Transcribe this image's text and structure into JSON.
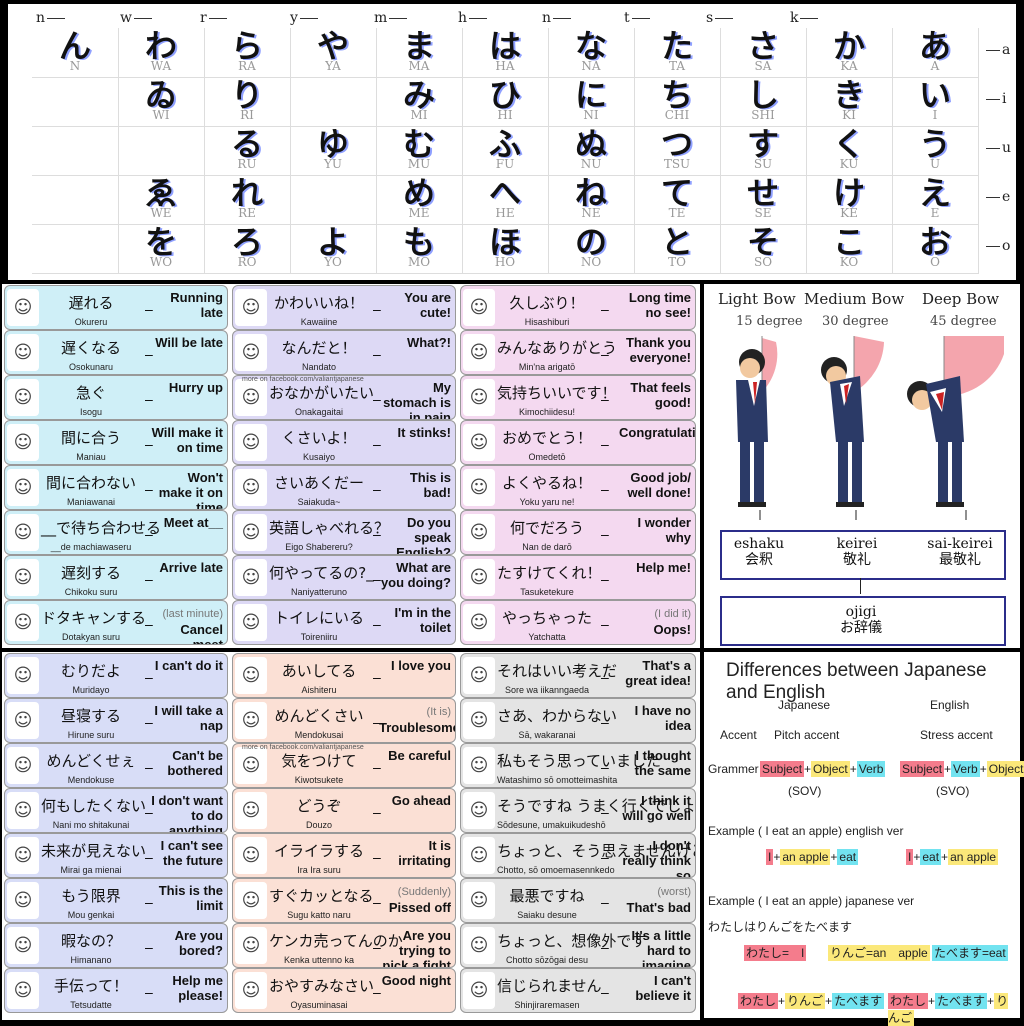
{
  "kana_chart": {
    "consonant_headers": [
      "n",
      "w",
      "r",
      "y",
      "m",
      "h",
      "n",
      "t",
      "s",
      "k"
    ],
    "vowel_labels": [
      "a",
      "i",
      "u",
      "e",
      "o"
    ],
    "columns": [
      {
        "cells": [
          {
            "kana": "ん",
            "romaji": "N"
          },
          null,
          null,
          null,
          null
        ]
      },
      {
        "cells": [
          {
            "kana": "わ",
            "romaji": "WA"
          },
          {
            "kana": "ゐ",
            "romaji": "WI"
          },
          null,
          {
            "kana": "ゑ",
            "romaji": "WE"
          },
          {
            "kana": "を",
            "romaji": "WO"
          }
        ]
      },
      {
        "cells": [
          {
            "kana": "ら",
            "romaji": "RA"
          },
          {
            "kana": "り",
            "romaji": "RI"
          },
          {
            "kana": "る",
            "romaji": "RU"
          },
          {
            "kana": "れ",
            "romaji": "RE"
          },
          {
            "kana": "ろ",
            "romaji": "RO"
          }
        ]
      },
      {
        "cells": [
          {
            "kana": "や",
            "romaji": "YA"
          },
          null,
          {
            "kana": "ゆ",
            "romaji": "YU"
          },
          null,
          {
            "kana": "よ",
            "romaji": "YO"
          }
        ]
      },
      {
        "cells": [
          {
            "kana": "ま",
            "romaji": "MA"
          },
          {
            "kana": "み",
            "romaji": "MI"
          },
          {
            "kana": "む",
            "romaji": "MU"
          },
          {
            "kana": "め",
            "romaji": "ME"
          },
          {
            "kana": "も",
            "romaji": "MO"
          }
        ]
      },
      {
        "cells": [
          {
            "kana": "は",
            "romaji": "HA"
          },
          {
            "kana": "ひ",
            "romaji": "HI"
          },
          {
            "kana": "ふ",
            "romaji": "FU"
          },
          {
            "kana": "へ",
            "romaji": "HE"
          },
          {
            "kana": "ほ",
            "romaji": "HO"
          }
        ]
      },
      {
        "cells": [
          {
            "kana": "な",
            "romaji": "NA"
          },
          {
            "kana": "に",
            "romaji": "NI"
          },
          {
            "kana": "ぬ",
            "romaji": "NU"
          },
          {
            "kana": "ね",
            "romaji": "NE"
          },
          {
            "kana": "の",
            "romaji": "NO"
          }
        ]
      },
      {
        "cells": [
          {
            "kana": "た",
            "romaji": "TA"
          },
          {
            "kana": "ち",
            "romaji": "CHI"
          },
          {
            "kana": "つ",
            "romaji": "TSU"
          },
          {
            "kana": "て",
            "romaji": "TE"
          },
          {
            "kana": "と",
            "romaji": "TO"
          }
        ]
      },
      {
        "cells": [
          {
            "kana": "さ",
            "romaji": "SA"
          },
          {
            "kana": "し",
            "romaji": "SHI"
          },
          {
            "kana": "す",
            "romaji": "SU"
          },
          {
            "kana": "せ",
            "romaji": "SE"
          },
          {
            "kana": "そ",
            "romaji": "SO"
          }
        ]
      },
      {
        "cells": [
          {
            "kana": "か",
            "romaji": "KA"
          },
          {
            "kana": "き",
            "romaji": "KI"
          },
          {
            "kana": "く",
            "romaji": "KU"
          },
          {
            "kana": "け",
            "romaji": "KE"
          },
          {
            "kana": "こ",
            "romaji": "KO"
          }
        ]
      },
      {
        "cells": [
          {
            "kana": "あ",
            "romaji": "A"
          },
          {
            "kana": "い",
            "romaji": "I"
          },
          {
            "kana": "う",
            "romaji": "U"
          },
          {
            "kana": "え",
            "romaji": "E"
          },
          {
            "kana": "お",
            "romaji": "O"
          }
        ]
      }
    ]
  },
  "panel1": {
    "columns": [
      {
        "color": "#cfeff7",
        "rows": [
          {
            "jp": "遅れる",
            "romaji": "Okureru",
            "en": "Running late"
          },
          {
            "jp": "遅くなる",
            "romaji": "Osokunaru",
            "en": "Will be late"
          },
          {
            "jp": "急ぐ",
            "romaji": "Isogu",
            "en": "Hurry up"
          },
          {
            "jp": "間に合う",
            "romaji": "Maniau",
            "en": "Will make it on time"
          },
          {
            "jp": "間に合わない",
            "romaji": "Maniawanai",
            "en": "Won't make it on time"
          },
          {
            "jp": "__で待ち合わせる",
            "romaji": "__de machiawaseru",
            "en": "Meet at__"
          },
          {
            "jp": "遅刻する",
            "romaji": "Chikoku suru",
            "en": "Arrive late"
          },
          {
            "jp": "ドタキャンする",
            "romaji": "Dotakyan suru",
            "en": "Cancel meet",
            "en_note": "(last minute)"
          }
        ]
      },
      {
        "color": "#ddd9f5",
        "rows": [
          {
            "jp": "かわいいね！",
            "romaji": "Kawaiine",
            "en": "You are cute!"
          },
          {
            "jp": "なんだと！",
            "romaji": "Nandato",
            "en": "What?!"
          },
          {
            "jp": "おなかがいたい",
            "romaji": "Onakagaitai",
            "en": "My stomach is in pain"
          },
          {
            "jp": "くさいよ！",
            "romaji": "Kusaiyo",
            "en": "It stinks!"
          },
          {
            "jp": "さいあくだー",
            "romaji": "Saiakuda~",
            "en": "This is bad!"
          },
          {
            "jp": "英語しゃべれる？",
            "romaji": "Eigo Shabereru?",
            "en": "Do you speak English?"
          },
          {
            "jp": "何やってるの?_",
            "romaji": "Naniyatteruno",
            "en": "What are you doing?"
          },
          {
            "jp": "トイレにいる",
            "romaji": "Toireniiru",
            "en": "I'm in the toilet"
          }
        ]
      },
      {
        "color": "#f4d9f0",
        "rows": [
          {
            "jp": "久しぶり！",
            "romaji": "Hisashiburi",
            "en": "Long time no see!"
          },
          {
            "jp": "みんなありがとう",
            "romaji": "Min'na arigatō",
            "en": "Thank you everyone!"
          },
          {
            "jp": "気持ちいいです！",
            "romaji": "Kimochiidesu!",
            "en": "That feels good!"
          },
          {
            "jp": "おめでとう！",
            "romaji": "Omedetō",
            "en": "Congratulations"
          },
          {
            "jp": "よくやるね！",
            "romaji": "Yoku yaru ne!",
            "en": "Good job/ well done!"
          },
          {
            "jp": "何でだろう",
            "romaji": "Nan de darō",
            "en": "I wonder why"
          },
          {
            "jp": "たすけてくれ！",
            "romaji": "Tasuketekure",
            "en": "Help me!"
          },
          {
            "jp": "やっちゃった",
            "romaji": "Yatchatta",
            "en": "Oops!",
            "en_note": "(I did it)"
          }
        ]
      }
    ],
    "footer_text": "more on facebook.com/valiantjapanese"
  },
  "panel2": {
    "columns": [
      {
        "color": "#d8ddf7",
        "rows": [
          {
            "jp": "むりだよ",
            "romaji": "Muridayo",
            "en": "I can't do it"
          },
          {
            "jp": "昼寝する",
            "romaji": "Hirune suru",
            "en": "I will take a nap"
          },
          {
            "jp": "めんどくせぇ",
            "romaji": "Mendokuse",
            "en": "Can't be bothered"
          },
          {
            "jp": "何もしたくない",
            "romaji": "Nani mo shitakunai",
            "en": "I don't want to do anything"
          },
          {
            "jp": "未来が見えない",
            "romaji": "Mirai ga mienai",
            "en": "I can't see the future"
          },
          {
            "jp": "もう限界",
            "romaji": "Mou genkai",
            "en": "This is the limit"
          },
          {
            "jp": "暇なの？",
            "romaji": "Himanano",
            "en": "Are you bored?"
          },
          {
            "jp": "手伝って！",
            "romaji": "Tetsudatte",
            "en": "Help me please!"
          }
        ]
      },
      {
        "color": "#fbe0d5",
        "rows": [
          {
            "jp": "あいしてる",
            "romaji": "Aishiteru",
            "en": "I love you"
          },
          {
            "jp": "めんどくさい",
            "romaji": "Mendokusai",
            "en": "Troublesome",
            "en_note": "(It is)"
          },
          {
            "jp": "気をつけて",
            "romaji": "Kiwotsukete",
            "en": "Be careful"
          },
          {
            "jp": "どうぞ",
            "romaji": "Douzo",
            "en": "Go ahead"
          },
          {
            "jp": "イライラする",
            "romaji": "Ira Ira suru",
            "en": "It is irritating"
          },
          {
            "jp": "すぐカッとなる",
            "romaji": "Sugu katto naru",
            "en": "Pissed off",
            "en_note": "(Suddenly)"
          },
          {
            "jp": "ケンカ売ってんのか",
            "romaji": "Kenka uttenno ka",
            "en": "Are you trying to pick a fight ?"
          },
          {
            "jp": "おやすみなさい",
            "romaji": "Oyasuminasai",
            "en": "Good night"
          }
        ]
      },
      {
        "color": "#e4e4e4",
        "rows": [
          {
            "jp": "それはいい考えだ",
            "romaji": "Sore wa iikanngaeda",
            "en": "That's a great idea!"
          },
          {
            "jp": "さあ、わからない",
            "romaji": "Sā, wakaranai",
            "en": "I have no idea"
          },
          {
            "jp": "私もそう思っていました",
            "romaji": "Watashimo sō omotteimashita",
            "en": "I thought the same"
          },
          {
            "jp": "そうですね うまく行くでしょう",
            "romaji": "Sōdesune, umakuikudeshō",
            "en": "I think it will go well"
          },
          {
            "jp": "ちょっと、そう思えませんけど",
            "romaji": "Chotto, sō omoemasennkedo",
            "en": "I don't really think so"
          },
          {
            "jp": "最悪ですね",
            "romaji": "Saiaku desune",
            "en": "That's bad",
            "en_note": "(worst)"
          },
          {
            "jp": "ちょっと、想像外です",
            "romaji": "Chotto sōzōgai desu",
            "en": "It's a little hard to imagine"
          },
          {
            "jp": "信じられません",
            "romaji": "Shinjiraremasen",
            "en": "I can't believe it"
          }
        ]
      }
    ],
    "footer_text": "more on facebook.com/valiantjapanese"
  },
  "bowing": {
    "bows": [
      {
        "title": "Light Bow",
        "degree": "15 degree",
        "romaji": "eshaku",
        "kanji": "会釈"
      },
      {
        "title": "Medium Bow",
        "degree": "30 degree",
        "romaji": "keirei",
        "kanji": "敬礼"
      },
      {
        "title": "Deep Bow",
        "degree": "45 degree",
        "romaji": "sai-keirei",
        "kanji": "最敬礼"
      }
    ],
    "summary": {
      "romaji": "ojigi",
      "kanji": "お辞儀"
    }
  },
  "differences": {
    "title": "Differences between Japanese and English",
    "col_japanese": "Japanese",
    "col_english": "English",
    "accent_label": "Accent",
    "accent_jp": "Pitch accent",
    "accent_en": "Stress accent",
    "grammar_label": "Grammer",
    "jp_order": [
      "Subject",
      "Object",
      "Verb"
    ],
    "en_order": [
      "Subject",
      "Verb",
      "Object"
    ],
    "sov": "(SOV)",
    "svo": "(SVO)",
    "ex1_label": "Example ( I eat an apple) english ver",
    "ex1_jp": [
      "I",
      "an apple",
      "eat"
    ],
    "ex1_en": [
      "I",
      "eat",
      "an apple"
    ],
    "ex2_label": "Example ( I eat an apple) japanese ver",
    "ex2_sentence": "わたしはりんごをたべます",
    "vocab": [
      "わたし=　I",
      "りんご=an　apple",
      "たべます=eat"
    ],
    "jp_sentence": [
      "わたし",
      "りんご",
      "たべます"
    ],
    "en_sentence": [
      "わたし",
      "たべます",
      "りんご"
    ],
    "colors": {
      "pink": "#f47c8c",
      "yellow": "#fbe87a",
      "cyan": "#72e3f0"
    }
  }
}
